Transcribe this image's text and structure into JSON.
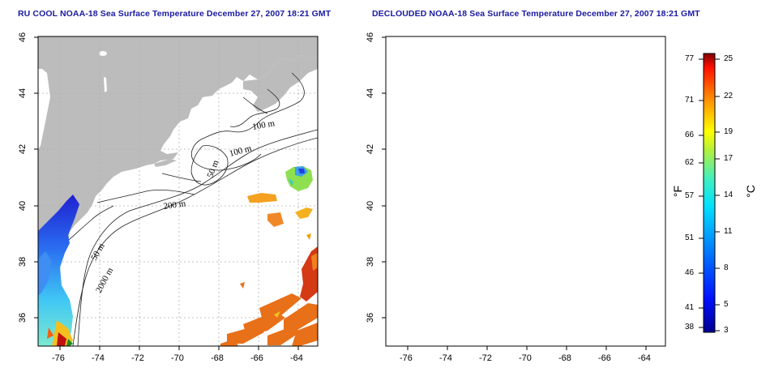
{
  "left_panel": {
    "title": "RU COOL NOAA-18 Sea Surface Temperature December 27, 2007 18:21 GMT"
  },
  "right_panel": {
    "title": "DECLOUDED NOAA-18 Sea Surface Temperature December 27, 2007 18:21 GMT"
  },
  "map": {
    "x_ticks": [
      "-76",
      "-74",
      "-72",
      "-70",
      "-68",
      "-66",
      "-64"
    ],
    "y_ticks": [
      "46",
      "44",
      "42",
      "40",
      "38",
      "36"
    ],
    "contour_labels": [
      "100 m",
      "100 m",
      "50 m",
      "200 m",
      "50 m",
      "2000 m"
    ]
  },
  "colorbar": {
    "fahrenheit_label": "°F",
    "celsius_label": "°C",
    "fahrenheit_ticks": [
      "77",
      "71",
      "66",
      "62",
      "57",
      "51",
      "46",
      "41",
      "38"
    ],
    "celsius_ticks": [
      "25",
      "22",
      "19",
      "17",
      "14",
      "11",
      "8",
      "5",
      "3"
    ]
  },
  "colors": {
    "land": "#bcbcbc",
    "grid": "#b0b0b0",
    "title": "#1a1aa0"
  }
}
